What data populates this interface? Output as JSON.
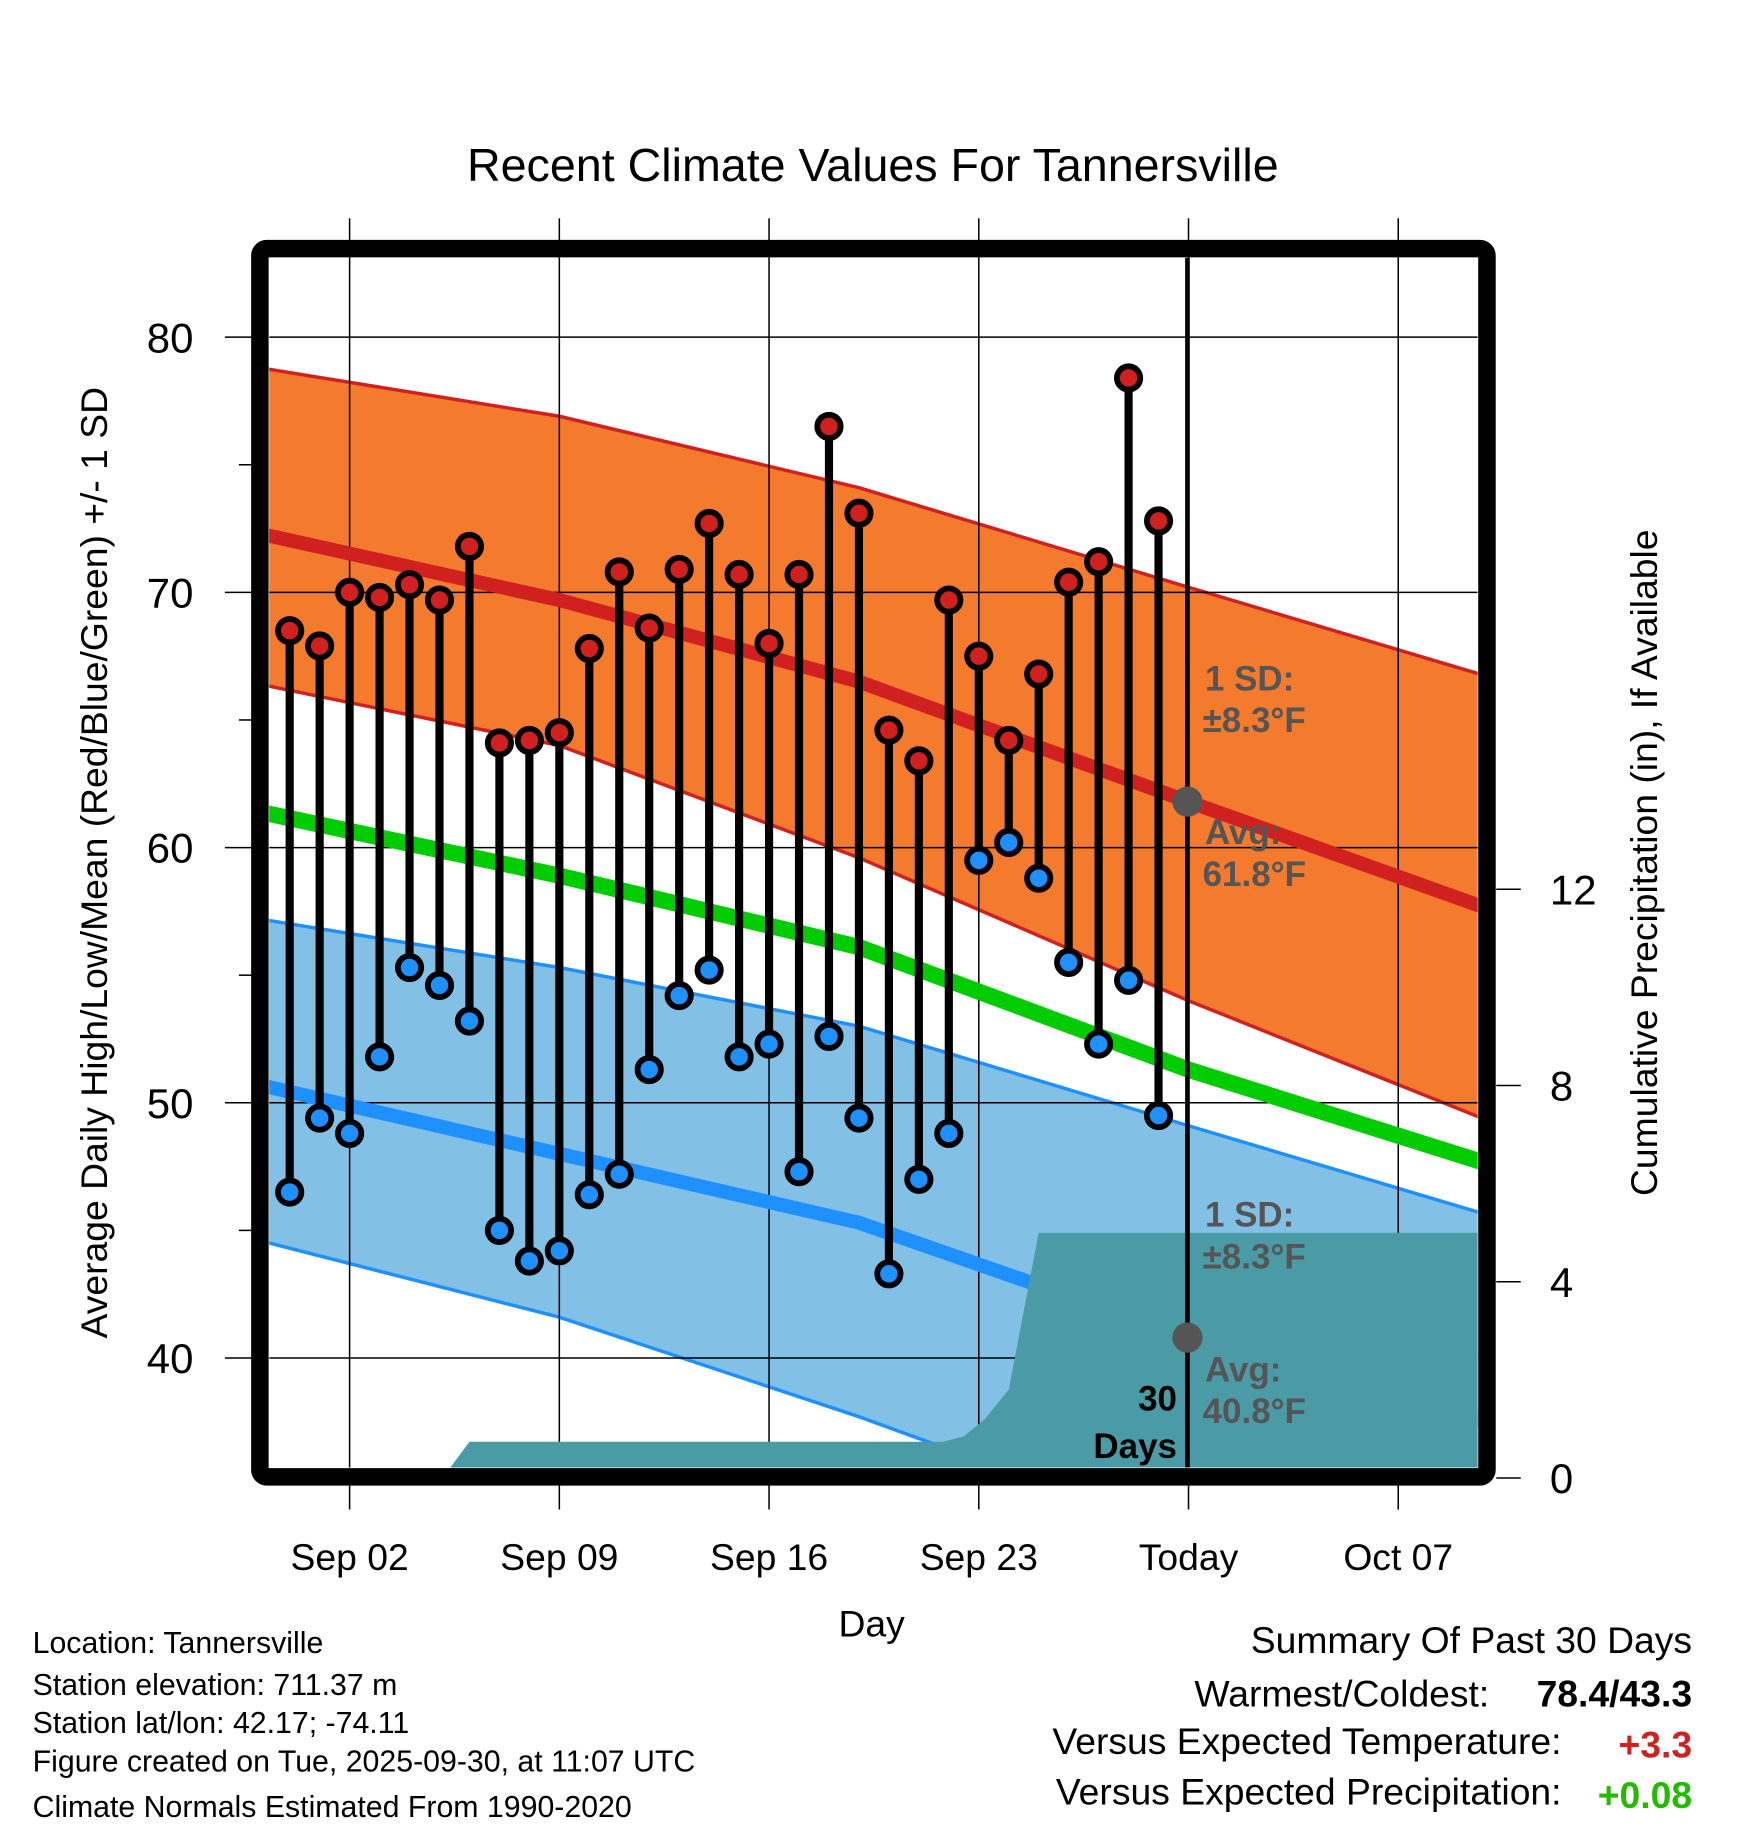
{
  "chart_data": {
    "type": "line",
    "title": "Recent Climate Values For Tannersville",
    "xlabel": "Day",
    "ylabel": "Average Daily High/Low/Mean (Red/Blue/Green) +/- 1 SD",
    "y2label": "Cumulative Precipitation (in), If Available",
    "x_unit": "days since Sep 01",
    "xlim": [
      -1.68,
      38.65
    ],
    "ylim": [
      35.7,
      83.1
    ],
    "y2lim": [
      0,
      15.8
    ],
    "yticks": [
      40,
      50,
      60,
      70,
      80
    ],
    "y2ticks": [
      0,
      4,
      8,
      12
    ],
    "xticks": [
      {
        "day": 1,
        "label": "Sep 02"
      },
      {
        "day": 8,
        "label": "Sep 09"
      },
      {
        "day": 15,
        "label": "Sep 16"
      },
      {
        "day": 22,
        "label": "Sep 23"
      },
      {
        "day": 29,
        "label": "Today"
      },
      {
        "day": 36,
        "label": "Oct 07"
      }
    ],
    "grid": true,
    "today_day": 29,
    "observed": {
      "days": [
        -1,
        0,
        1,
        2,
        3,
        4,
        5,
        6,
        7,
        8,
        9,
        10,
        11,
        12,
        13,
        14,
        15,
        16,
        17,
        18,
        19,
        20,
        21,
        22,
        23,
        24,
        25,
        26,
        27,
        28
      ],
      "highs": [
        68.5,
        67.9,
        70.0,
        69.8,
        70.3,
        69.7,
        71.8,
        64.1,
        64.2,
        64.5,
        67.8,
        70.8,
        68.6,
        70.9,
        72.7,
        70.7,
        68.0,
        70.7,
        76.5,
        73.1,
        64.6,
        63.4,
        69.7,
        67.5,
        64.2,
        66.8,
        70.4,
        71.2,
        78.4,
        72.8
      ],
      "lows": [
        46.5,
        49.4,
        48.8,
        51.8,
        55.3,
        54.6,
        53.2,
        45.0,
        43.8,
        44.2,
        46.4,
        47.2,
        51.3,
        54.2,
        55.2,
        51.8,
        52.3,
        47.3,
        52.6,
        49.4,
        43.3,
        47.0,
        48.8,
        59.5,
        60.2,
        58.8,
        55.5,
        52.3,
        54.8,
        49.5
      ]
    },
    "normals": {
      "days": [
        -2,
        8,
        18,
        29,
        39
      ],
      "high_avg": [
        72.3,
        69.7,
        66.5,
        61.8,
        57.6
      ],
      "high_upper": [
        78.8,
        76.9,
        74.1,
        70.2,
        66.7
      ],
      "high_lower": [
        66.4,
        64.0,
        59.6,
        54.0,
        49.3
      ],
      "mean": [
        61.4,
        58.9,
        56.1,
        51.3,
        47.6
      ],
      "low_avg": [
        50.7,
        48.0,
        45.3,
        40.8,
        37.5
      ],
      "low_upper": [
        57.2,
        55.3,
        53.0,
        49.1,
        45.6
      ],
      "low_lower": [
        44.6,
        41.6,
        37.7,
        33.0,
        29.0
      ]
    },
    "precip": {
      "days": [
        -1.68,
        4.1,
        5.0,
        20.8,
        21.5,
        22.2,
        23.0,
        24.0,
        38.65
      ],
      "values": [
        0,
        0,
        0.74,
        0.74,
        0.85,
        1.2,
        1.8,
        5.0,
        5.0
      ]
    },
    "annotations": {
      "high_sd": "1 SD:",
      "high_sd_val": "±8.3°F",
      "high_avg": "Avg:",
      "high_avg_val": "61.8°F",
      "low_sd": "1 SD:",
      "low_sd_val": "±8.3°F",
      "low_avg": "Avg:",
      "low_avg_val": "40.8°F",
      "window1": "30",
      "window2": "Days"
    },
    "colors": {
      "high": "#d02020",
      "high_band": "#f47a2e",
      "low": "#1e90ff",
      "low_band": "#82c0e6",
      "mean": "#00cc00",
      "precip": "#4a9ba5"
    }
  },
  "footer": {
    "location": "Location: Tannersville",
    "elevation": "Station elevation: 711.37 m",
    "latlon": "Station lat/lon: 42.17; -74.11",
    "created": "Figure created on Tue, 2025-09-30, at 11:07 UTC",
    "normals": "Climate Normals Estimated From 1990-2020"
  },
  "summary": {
    "title": "Summary Of Past 30 Days",
    "warmest_label": "Warmest/Coldest:",
    "warmest_value": "78.4/43.3",
    "temp_label": "Versus Expected Temperature:",
    "temp_value": "+3.3",
    "temp_color": "#d02020",
    "precip_label": "Versus Expected Precipitation:",
    "precip_value": "+0.08",
    "precip_color": "#22bb00"
  }
}
